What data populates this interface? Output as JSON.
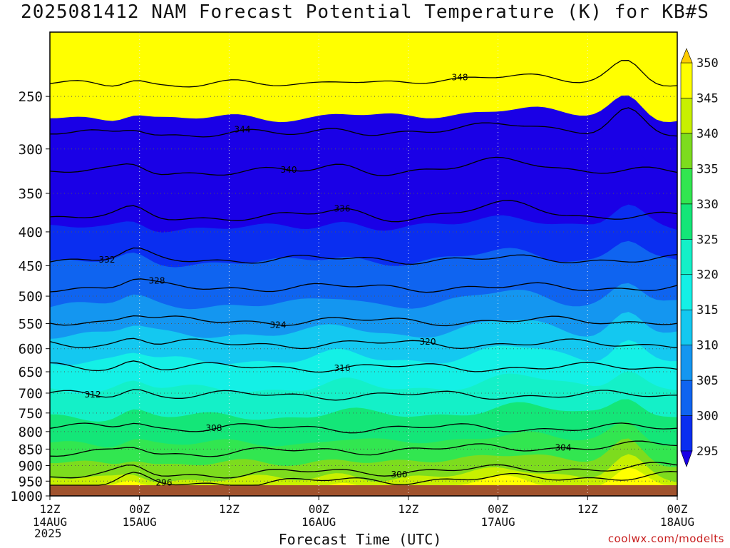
{
  "title": "2025081412 NAM Forecast Potential Temperature (K) for KB#S",
  "xlabel": "Forecast Time (UTC)",
  "credit": "coolwx.com/modelts",
  "year_label": "2025",
  "colors": {
    "ground": "#a0522d",
    "grid": "#555555",
    "contour": "#000000"
  },
  "chart_data": {
    "type": "heatmap",
    "title": "2025081412 NAM Forecast Potential Temperature (K) for KB#S",
    "xlabel": "Forecast Time (UTC)",
    "ylabel": "",
    "x_range_hours": [
      0,
      84
    ],
    "y_axis_hPa": {
      "top": 200,
      "bottom": 1000,
      "ticks": [
        250,
        300,
        350,
        400,
        450,
        500,
        550,
        600,
        650,
        700,
        750,
        800,
        850,
        900,
        950,
        1000
      ]
    },
    "x_ticks": [
      {
        "hour": 0,
        "time": "12Z",
        "date": "14AUG"
      },
      {
        "hour": 12,
        "time": "00Z",
        "date": "15AUG"
      },
      {
        "hour": 24,
        "time": "12Z",
        "date": ""
      },
      {
        "hour": 36,
        "time": "00Z",
        "date": "16AUG"
      },
      {
        "hour": 48,
        "time": "12Z",
        "date": ""
      },
      {
        "hour": 60,
        "time": "00Z",
        "date": "17AUG"
      },
      {
        "hour": 72,
        "time": "12Z",
        "date": ""
      },
      {
        "hour": 84,
        "time": "00Z",
        "date": "18AUG"
      }
    ],
    "colorbar": {
      "levels": [
        295,
        300,
        305,
        310,
        315,
        320,
        325,
        330,
        335,
        340,
        345,
        350
      ],
      "colors": [
        "#1a00e6",
        "#0a2ef0",
        "#0f64f0",
        "#1496f0",
        "#14c8f0",
        "#14f0e6",
        "#14f0c8",
        "#14e678",
        "#32e650",
        "#7ddc1e",
        "#c8f000",
        "#ffff00",
        "#ffcc00",
        "#ff9900"
      ]
    },
    "contour_label_values": [
      296,
      300,
      304,
      308,
      312,
      316,
      320,
      324,
      328,
      332,
      336,
      340,
      344,
      348
    ],
    "contour_profile_hPa": [
      {
        "theta": 296,
        "hPa": 965
      },
      {
        "theta": 300,
        "hPa": 935
      },
      {
        "theta": 304,
        "hPa": 868
      },
      {
        "theta": 308,
        "hPa": 790
      },
      {
        "theta": 312,
        "hPa": 705
      },
      {
        "theta": 316,
        "hPa": 640
      },
      {
        "theta": 320,
        "hPa": 590
      },
      {
        "theta": 324,
        "hPa": 545
      },
      {
        "theta": 328,
        "hPa": 485
      },
      {
        "theta": 332,
        "hPa": 440
      },
      {
        "theta": 336,
        "hPa": 380
      },
      {
        "theta": 340,
        "hPa": 325
      },
      {
        "theta": 344,
        "hPa": 285
      },
      {
        "theta": 348,
        "hPa": 240
      }
    ]
  }
}
